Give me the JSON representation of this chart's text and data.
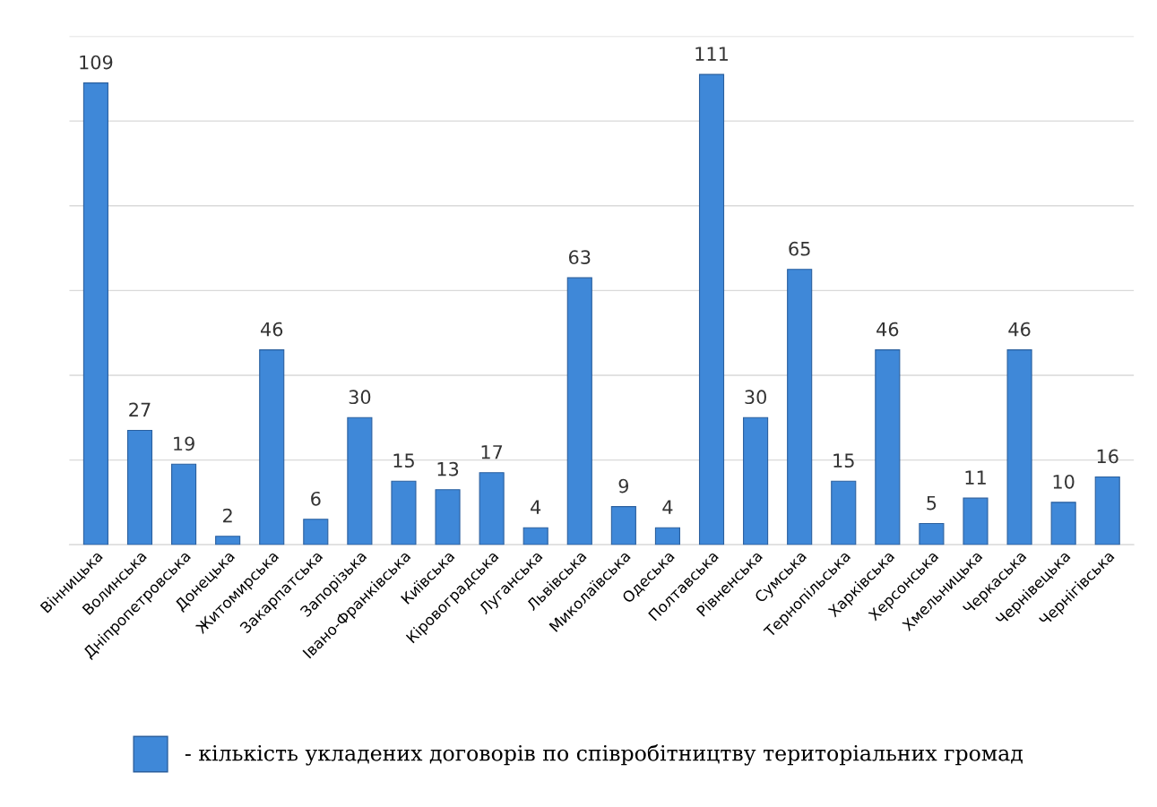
{
  "chart_data": {
    "type": "bar",
    "categories": [
      "Вінницька",
      "Волинська",
      "Дніпропетровська",
      "Донецька",
      "Житомирська",
      "Закарпатська",
      "Запорізька",
      "Івано-Франківська",
      "Київська",
      "Кіровоградська",
      "Луганська",
      "Львівська",
      "Миколаївська",
      "Одеська",
      "Полтавська",
      "Рівненська",
      "Сумська",
      "Тернопільська",
      "Харківська",
      "Херсонська",
      "Хмельницька",
      "Черкаська",
      "Чернівецька",
      "Чернігівська"
    ],
    "series": [
      {
        "name": "- кількість укладених договорів по співробітництву територіальних громад",
        "color": "#3f88d8",
        "values": [
          109,
          27,
          19,
          2,
          46,
          6,
          30,
          15,
          13,
          17,
          4,
          63,
          9,
          4,
          111,
          30,
          65,
          15,
          46,
          5,
          11,
          46,
          10,
          16
        ]
      }
    ],
    "ylim": [
      0,
      120
    ],
    "yticks": [
      0,
      20,
      40,
      60,
      80,
      100,
      120
    ],
    "tick_labels": "x",
    "grid": "y",
    "data_labels": true,
    "legend": "bottom"
  }
}
